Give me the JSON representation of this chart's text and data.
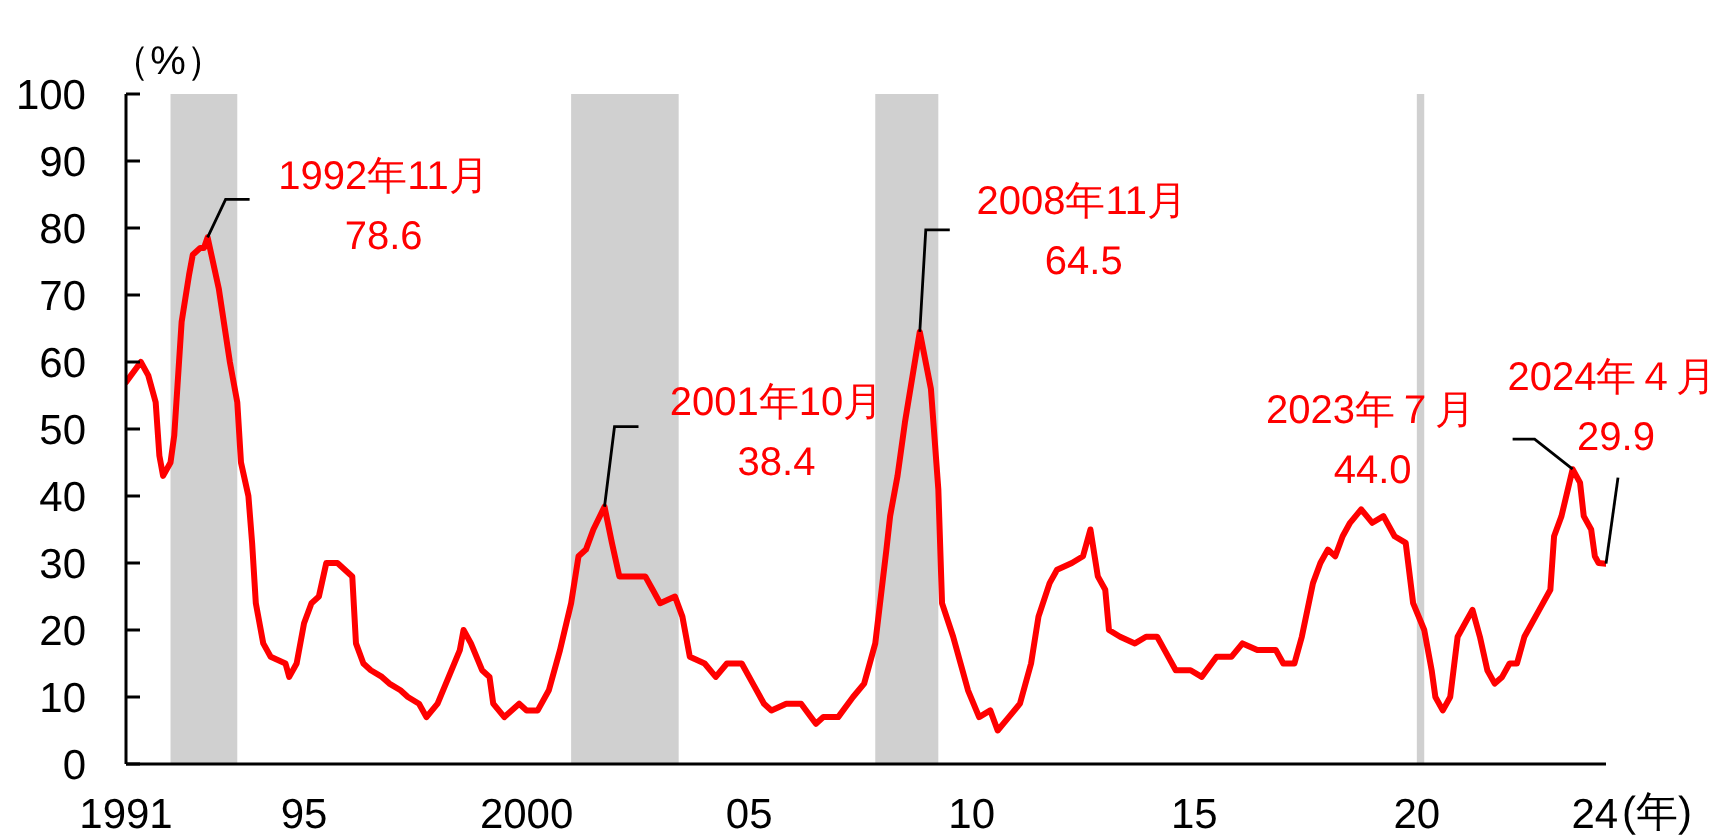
{
  "chart_data": {
    "type": "line",
    "ylabel": "（%）",
    "xlabel": "(年)",
    "x": [
      "1991-01",
      "1991-05",
      "1991-07",
      "1991-09",
      "1991-10",
      "1991-11",
      "1992-01",
      "1992-02",
      "1992-04",
      "1992-06",
      "1992-07",
      "1992-09",
      "1992-10",
      "1992-11",
      "1993-02",
      "1993-05",
      "1993-07",
      "1993-08",
      "1993-10",
      "1993-11",
      "1993-12",
      "1994-02",
      "1994-04",
      "1994-08",
      "1994-09",
      "1994-11",
      "1995-01",
      "1995-03",
      "1995-05",
      "1995-07",
      "1995-10",
      "1996-02",
      "1996-03",
      "1996-05",
      "1996-07",
      "1996-10",
      "1996-12",
      "1997-03",
      "1997-05",
      "1997-08",
      "1997-10",
      "1998-01",
      "1998-04",
      "1998-07",
      "1998-08",
      "1998-10",
      "1999-01",
      "1999-03",
      "1999-04",
      "1999-07",
      "1999-11",
      "2000-01",
      "2000-04",
      "2000-07",
      "2000-10",
      "2001-01",
      "2001-03",
      "2001-05",
      "2001-07",
      "2001-10",
      "2001-12",
      "2002-02",
      "2002-05",
      "2002-09",
      "2002-11",
      "2003-01",
      "2003-05",
      "2003-07",
      "2003-09",
      "2004-01",
      "2004-04",
      "2004-07",
      "2004-11",
      "2005-02",
      "2005-05",
      "2005-07",
      "2005-11",
      "2006-03",
      "2006-07",
      "2006-09",
      "2007-01",
      "2007-05",
      "2007-08",
      "2007-11",
      "2008-02",
      "2008-03",
      "2008-05",
      "2008-07",
      "2008-11",
      "2009-02",
      "2009-04",
      "2009-05",
      "2009-08",
      "2009-10",
      "2009-12",
      "2010-03",
      "2010-06",
      "2010-08",
      "2010-11",
      "2011-02",
      "2011-05",
      "2011-07",
      "2011-10",
      "2011-12",
      "2012-04",
      "2012-07",
      "2012-09",
      "2012-11",
      "2013-01",
      "2013-02",
      "2013-05",
      "2013-09",
      "2013-12",
      "2014-03",
      "2014-05",
      "2014-08",
      "2014-12",
      "2015-03",
      "2015-07",
      "2015-11",
      "2016-02",
      "2016-06",
      "2016-09",
      "2016-11",
      "2017-01",
      "2017-04",
      "2017-06",
      "2017-09",
      "2017-11",
      "2018-01",
      "2018-03",
      "2018-05",
      "2018-07",
      "2018-10",
      "2019-01",
      "2019-04",
      "2019-07",
      "2019-10",
      "2019-12",
      "2020-03",
      "2020-05",
      "2020-06",
      "2020-08",
      "2020-10",
      "2020-12",
      "2021-02",
      "2021-04",
      "2021-06",
      "2021-08",
      "2021-10",
      "2021-12",
      "2022-02",
      "2022-04",
      "2022-06",
      "2022-08",
      "2022-10",
      "2023-01",
      "2023-02",
      "2023-04",
      "2023-07",
      "2023-09",
      "2023-10",
      "2023-12",
      "2024-01",
      "2024-02",
      "2024-04"
    ],
    "values": [
      57,
      60,
      58,
      54,
      46,
      43,
      45,
      49,
      66,
      73,
      76,
      77,
      77,
      78.6,
      71,
      60,
      54,
      45,
      40,
      33,
      24,
      18,
      16,
      15,
      13,
      15,
      21,
      24,
      25,
      30,
      30,
      28,
      18,
      15,
      14,
      13,
      12,
      11,
      10,
      9,
      7,
      9,
      13,
      17,
      20,
      18,
      14,
      13,
      9,
      7,
      9,
      8,
      8,
      11,
      17,
      24,
      31,
      32,
      35,
      38.4,
      33,
      28,
      28,
      28,
      26,
      24,
      25,
      22,
      16,
      15,
      13,
      15,
      15,
      12,
      9,
      8,
      9,
      9,
      6,
      7,
      7,
      10,
      12,
      18,
      32,
      37,
      43,
      51,
      64.5,
      56,
      41,
      24,
      19,
      15,
      11,
      7,
      8,
      5,
      7,
      9,
      15,
      22,
      27,
      29,
      30,
      31,
      35,
      28,
      26,
      20,
      19,
      18,
      19,
      19,
      17,
      14,
      14,
      13,
      16,
      16,
      18,
      17,
      17,
      17,
      15,
      15,
      19,
      27,
      30,
      32,
      31,
      34,
      36,
      38,
      36,
      37,
      34,
      33,
      24,
      20,
      14,
      10,
      8,
      10,
      19,
      21,
      23,
      19,
      14,
      12,
      13,
      15,
      15,
      19,
      21,
      23,
      26,
      34,
      37,
      44.0,
      42,
      37,
      35,
      31,
      30,
      29.9
    ],
    "color": "#ff0000",
    "xlim": [
      "1991-01",
      "2024-04"
    ],
    "xticks": [
      {
        "value": "1991",
        "label": "1991"
      },
      {
        "value": "1995",
        "label": "95"
      },
      {
        "value": "2000",
        "label": "2000"
      },
      {
        "value": "2005",
        "label": "05"
      },
      {
        "value": "2010",
        "label": "10"
      },
      {
        "value": "2015",
        "label": "15"
      },
      {
        "value": "2020",
        "label": "20"
      },
      {
        "value": "2024",
        "label": "24"
      }
    ],
    "ylim": [
      0,
      100
    ],
    "yticks": [
      0,
      10,
      20,
      30,
      40,
      50,
      60,
      70,
      80,
      90,
      100
    ],
    "bands": [
      {
        "axis": "x",
        "from": "1992-01",
        "to": "1993-07",
        "color": "#d0d0d0"
      },
      {
        "axis": "x",
        "from": "2001-01",
        "to": "2003-06",
        "color": "#d0d0d0"
      },
      {
        "axis": "x",
        "from": "2007-11",
        "to": "2009-04",
        "color": "#d0d0d0"
      },
      {
        "axis": "x",
        "from": "2020-01",
        "to": "2020-03",
        "color": "#d0d0d0"
      }
    ],
    "annotations": [
      {
        "text": "1992年11月\n78.6",
        "x": "1992-11",
        "y": 78.6
      },
      {
        "text": "2001年10月\n38.4",
        "x": "2001-10",
        "y": 38.4
      },
      {
        "text": "2008年11月\n64.5",
        "x": "2008-11",
        "y": 64.5
      },
      {
        "text": "2023年７月\n44.0",
        "x": "2023-07",
        "y": 44.0
      },
      {
        "text": "2024年４月\n29.9",
        "x": "2024-04",
        "y": 29.9
      }
    ]
  }
}
